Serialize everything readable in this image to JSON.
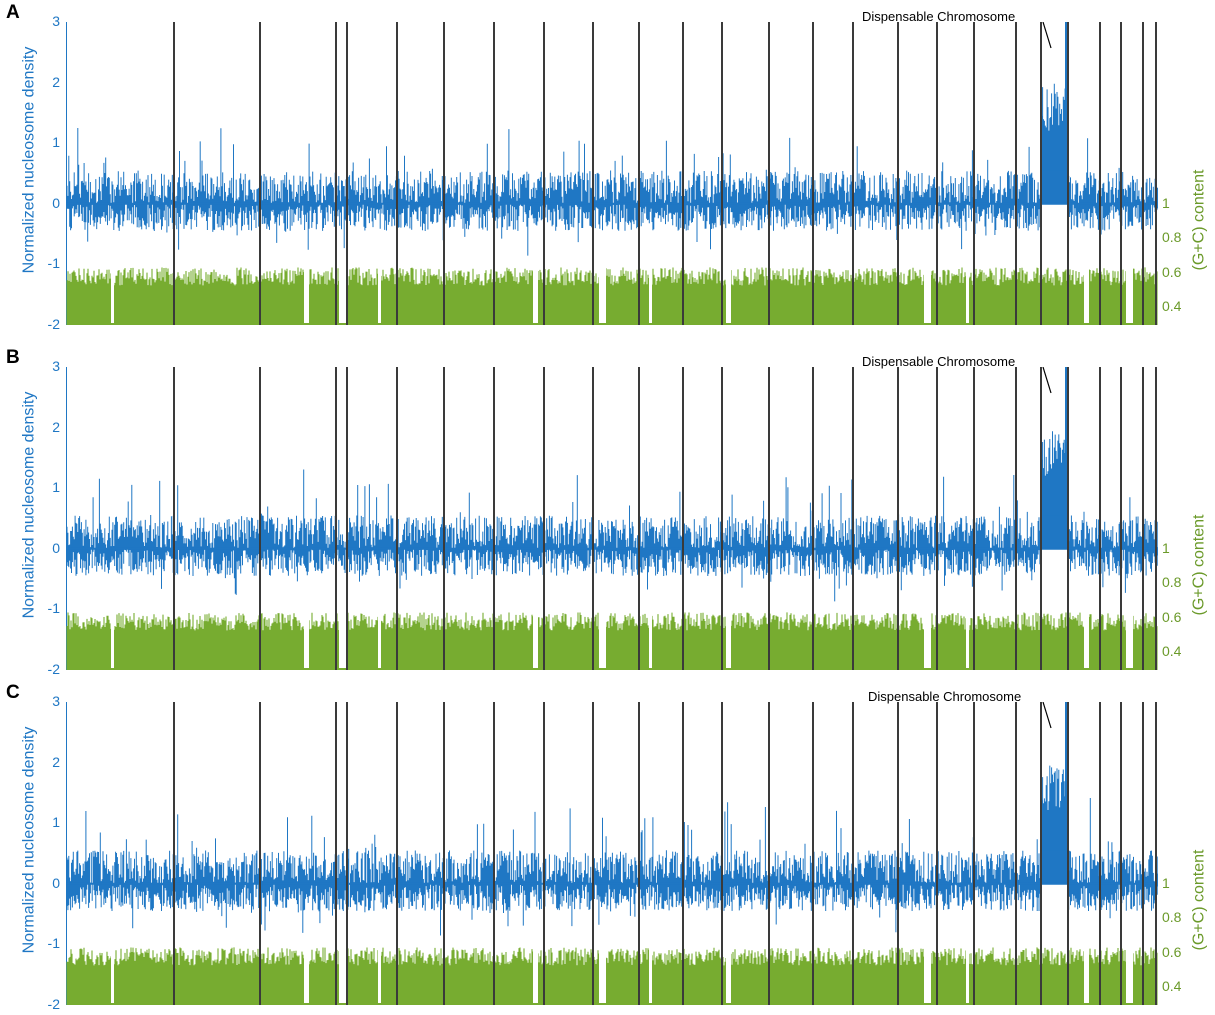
{
  "annotation": "Dispensable Chromosome",
  "chart_data": [
    {
      "panel": "A",
      "type": "line",
      "ylabel": "Normalized nucleosome density",
      "y2label": "(G+C) content",
      "ylim": [
        -2,
        3
      ],
      "y2lim": [
        0.3,
        1.0
      ],
      "yticks": [
        "3",
        "2",
        "1",
        "0",
        "-1",
        "-2"
      ],
      "y2ticks": [
        "1",
        "0.8",
        "0.6",
        "0.4"
      ],
      "series": [
        {
          "color": "#1f77c4",
          "baseline": 0,
          "typical_range": [
            -0.5,
            0.7
          ],
          "dispensable_level": 1.8
        },
        {
          "color": "#77ac30",
          "baseline": 0.32,
          "typical_range": [
            0.5,
            0.62
          ]
        }
      ],
      "chromosome_boundaries": 25,
      "annotation": "Dispensable Chromosome"
    },
    {
      "panel": "B",
      "type": "line",
      "ylabel": "Normalized nucleosome density",
      "y2label": "(G+C) content",
      "ylim": [
        -2,
        3
      ],
      "y2lim": [
        0.3,
        1.0
      ],
      "yticks": [
        "3",
        "2",
        "1",
        "0",
        "-1",
        "-2"
      ],
      "y2ticks": [
        "1",
        "0.8",
        "0.6",
        "0.4"
      ],
      "series": [
        {
          "color": "#1f77c4",
          "baseline": 0,
          "typical_range": [
            -0.5,
            0.7
          ],
          "dispensable_level": 2.0
        },
        {
          "color": "#77ac30",
          "baseline": 0.32,
          "typical_range": [
            0.5,
            0.62
          ]
        }
      ],
      "chromosome_boundaries": 25,
      "annotation": "Dispensable Chromosome"
    },
    {
      "panel": "C",
      "type": "line",
      "ylabel": "Normalized nucleosome density",
      "y2label": "(G+C) content",
      "ylim": [
        -2,
        3
      ],
      "y2lim": [
        0.3,
        1.0
      ],
      "yticks": [
        "3",
        "2",
        "1",
        "0",
        "-1",
        "-2"
      ],
      "y2ticks": [
        "1",
        "0.8",
        "0.6",
        "0.4"
      ],
      "series": [
        {
          "color": "#1f77c4",
          "baseline": 0,
          "typical_range": [
            -0.5,
            0.7
          ],
          "dispensable_level": 1.8
        },
        {
          "color": "#77ac30",
          "baseline": 0.32,
          "typical_range": [
            0.5,
            0.62
          ]
        }
      ],
      "chromosome_boundaries": 25,
      "annotation": "Dispensable Chromosome"
    }
  ]
}
